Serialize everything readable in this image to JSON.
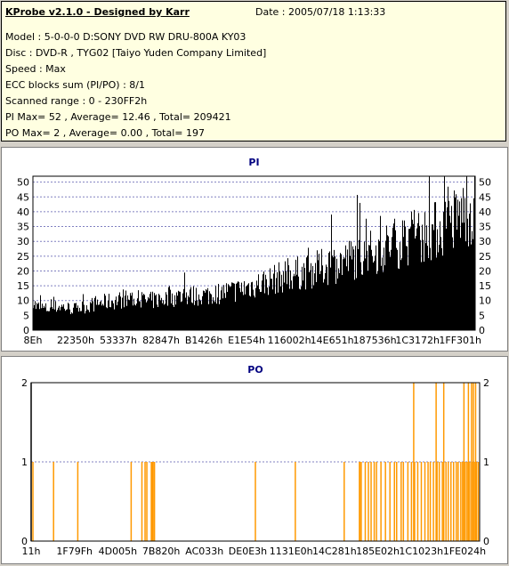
{
  "header": {
    "title": "KProbe v2.1.0 - Designed by Karr",
    "date": "Date : 2005/07/18 1:13:33",
    "lines": [
      "Model : 5-0-0-0 D:SONY    DVD RW DRU-800A  KY03",
      "Disc : DVD-R , TYG02 [Taiyo Yuden Company Limited]",
      "Speed : Max",
      "ECC blocks sum (PI/PO) : 8/1",
      "Scanned range : 0 - 230FF2h",
      "PI Max= 52 , Average= 12.46 , Total= 209421",
      "PO Max= 2 , Average= 0.00 , Total= 197"
    ]
  },
  "colors": {
    "pi_fill": "#000000",
    "po_line": "#ff9900",
    "title": "#000080",
    "grid": "#8080c0"
  },
  "chart_data": [
    {
      "type": "bar",
      "title": "PI",
      "ylim": [
        0,
        52
      ],
      "yticks": [
        0,
        5,
        10,
        15,
        20,
        25,
        30,
        35,
        40,
        45,
        50
      ],
      "xticks": [
        "8Eh",
        "22350h",
        "53337h",
        "82847h",
        "B1426h",
        "E1E54h",
        "116002h",
        "14E651h",
        "187536h",
        "1C3172h",
        "1FF301h"
      ],
      "profile": [
        [
          0.0,
          12
        ],
        [
          0.005,
          9
        ],
        [
          0.03,
          8
        ],
        [
          0.06,
          9
        ],
        [
          0.09,
          8
        ],
        [
          0.12,
          9
        ],
        [
          0.14,
          10
        ],
        [
          0.18,
          11
        ],
        [
          0.22,
          12
        ],
        [
          0.26,
          11
        ],
        [
          0.3,
          12
        ],
        [
          0.34,
          13
        ],
        [
          0.38,
          13
        ],
        [
          0.42,
          14
        ],
        [
          0.46,
          15
        ],
        [
          0.5,
          17
        ],
        [
          0.54,
          19
        ],
        [
          0.58,
          21
        ],
        [
          0.62,
          22
        ],
        [
          0.66,
          24
        ],
        [
          0.7,
          26
        ],
        [
          0.74,
          28
        ],
        [
          0.78,
          30
        ],
        [
          0.82,
          33
        ],
        [
          0.86,
          35
        ],
        [
          0.9,
          37
        ],
        [
          0.94,
          40
        ],
        [
          0.97,
          44
        ],
        [
          1.0,
          46
        ]
      ]
    },
    {
      "type": "bar",
      "title": "PO",
      "ylim": [
        0,
        2
      ],
      "yticks": [
        0,
        1,
        2
      ],
      "xticks": [
        "11h",
        "1F79Fh",
        "4D005h",
        "7B820h",
        "AC033h",
        "DE0E3h",
        "1131E0h",
        "14C281h",
        "185E02h",
        "1C1023h",
        "1FE024h"
      ],
      "ones": [
        0.004,
        0.05,
        0.104,
        0.223,
        0.247,
        0.254,
        0.258,
        0.268,
        0.27,
        0.272,
        0.275,
        0.5,
        0.589,
        0.698,
        0.732,
        0.733,
        0.736,
        0.745,
        0.752,
        0.758,
        0.765,
        0.77,
        0.78,
        0.79,
        0.8,
        0.81,
        0.815,
        0.825,
        0.83,
        0.84,
        0.848,
        0.855,
        0.862,
        0.87,
        0.878,
        0.885,
        0.89,
        0.897,
        0.905,
        0.91,
        0.917,
        0.925,
        0.93,
        0.936,
        0.942,
        0.948,
        0.952,
        0.958,
        0.962,
        0.968,
        0.972,
        0.978,
        0.983,
        0.988,
        0.993,
        0.997
      ],
      "twos": [
        0.0,
        0.853,
        0.903,
        0.92,
        0.965,
        0.975,
        0.982,
        0.986,
        0.991
      ]
    }
  ]
}
